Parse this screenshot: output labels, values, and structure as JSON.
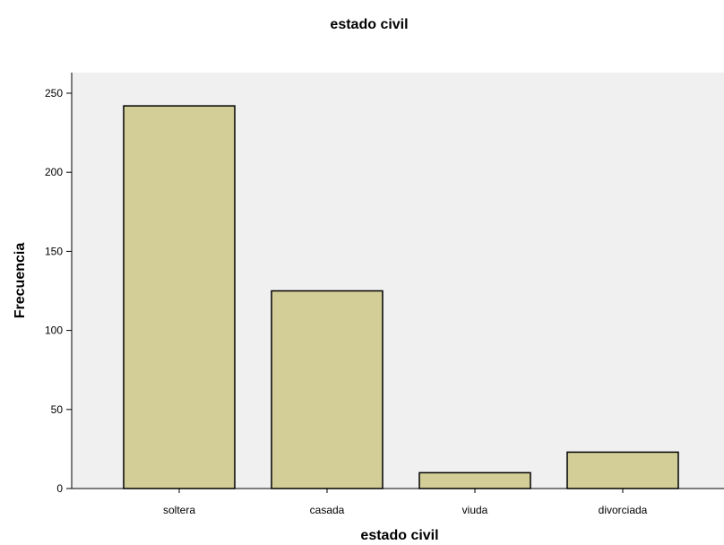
{
  "chart_data": {
    "type": "bar",
    "title": "estado civil",
    "xlabel": "estado civil",
    "ylabel": "Frecuencia",
    "categories": [
      "soltera",
      "casada",
      "viuda",
      "divorciada"
    ],
    "values": [
      242,
      125,
      10,
      23
    ],
    "ylim": [
      0,
      250
    ],
    "yticks": [
      0,
      50,
      100,
      150,
      200,
      250
    ],
    "grid": false,
    "legend": "none",
    "colors": {
      "bar_fill": "#D3CE97",
      "bar_stroke": "#000000",
      "plot_background": "#F0F0F0",
      "axis": "#000000"
    }
  }
}
